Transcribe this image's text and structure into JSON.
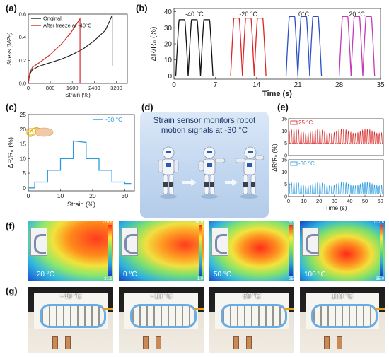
{
  "panels": {
    "a": "(a)",
    "b": "(b)",
    "c": "(c)",
    "d": "(d)",
    "e": "(e)",
    "f": "(f)",
    "g": "(g)"
  },
  "chart_data": [
    {
      "id": "a",
      "type": "line",
      "xlabel": "Strain (%)",
      "ylabel": "Stress (MPa)",
      "xlim": [
        0,
        3600
      ],
      "ylim": [
        0,
        0.6
      ],
      "xticks": [
        "0",
        "800",
        "1600",
        "2400",
        "3200"
      ],
      "yticks": [
        "0.0",
        "0.2",
        "0.4",
        "0.6"
      ],
      "legend_position": "top-left",
      "series": [
        {
          "name": "Original",
          "color": "#222222",
          "x": [
            0,
            50,
            150,
            400,
            800,
            1200,
            1600,
            2000,
            2400,
            2800,
            3050,
            3050
          ],
          "y": [
            0,
            0.08,
            0.12,
            0.15,
            0.18,
            0.21,
            0.25,
            0.3,
            0.37,
            0.46,
            0.59,
            0.15
          ]
        },
        {
          "name": "After freeze at -40°C",
          "color": "#d62b2b",
          "x": [
            0,
            50,
            150,
            400,
            800,
            1200,
            1550,
            1880,
            1880
          ],
          "y": [
            0,
            0.09,
            0.14,
            0.18,
            0.25,
            0.34,
            0.44,
            0.56,
            0.0
          ]
        }
      ]
    },
    {
      "id": "b",
      "type": "line",
      "xlabel": "Time (s)",
      "ylabel": "ΔR/R₀ (%)",
      "xlim": [
        0,
        35
      ],
      "ylim": [
        -2,
        42
      ],
      "xticks": [
        "0",
        "7",
        "14",
        "21",
        "28",
        "35"
      ],
      "yticks": [
        "0",
        "10",
        "20",
        "30",
        "40"
      ],
      "annotations": [
        "-40 °C",
        "-20 °C",
        "0°C",
        "20 °C"
      ],
      "series": [
        {
          "name": "-40 °C",
          "color": "#111111",
          "start": 0.3,
          "end": 6.6,
          "peak": 35
        },
        {
          "name": "-20 °C",
          "color": "#e02424",
          "start": 9.6,
          "end": 15.6,
          "peak": 36
        },
        {
          "name": "0°C",
          "color": "#2c4fc4",
          "start": 19.0,
          "end": 25.0,
          "peak": 37
        },
        {
          "name": "20 °C",
          "color": "#c43bb6",
          "start": 28.0,
          "end": 34.0,
          "peak": 37
        }
      ]
    },
    {
      "id": "c",
      "type": "line",
      "xlabel": "Strain (%)",
      "ylabel": "ΔR/R₀ (%)",
      "xlim": [
        0,
        33
      ],
      "ylim": [
        -1,
        25
      ],
      "xticks": [
        "0",
        "10",
        "20",
        "30"
      ],
      "yticks": [
        "0",
        "5",
        "10",
        "15",
        "20",
        "25"
      ],
      "legend_position": "top-right",
      "series": [
        {
          "name": "-30 °C",
          "color": "#2a9be0",
          "x": [
            0,
            2,
            2,
            6,
            6,
            10,
            10,
            14,
            14,
            18,
            18,
            22,
            22,
            26,
            26,
            30,
            30,
            32
          ],
          "y": [
            0,
            0,
            2,
            2,
            6,
            6,
            10,
            10,
            16,
            15.5,
            10,
            10,
            6,
            6,
            2,
            2,
            1.5,
            1.5
          ]
        }
      ]
    },
    {
      "id": "e",
      "type": "line",
      "xlabel": "Time (s)",
      "ylabel": "ΔR/R₀ (%)",
      "xlim": [
        0,
        62
      ],
      "xticks": [
        "0",
        "10",
        "20",
        "30",
        "40",
        "50",
        "60"
      ],
      "series": [
        {
          "name": "25 °C",
          "color": "#d8302f",
          "yticks": [
            "0",
            "5",
            "10",
            "15"
          ],
          "ylim": [
            0,
            15
          ]
        },
        {
          "name": "-30 °C",
          "color": "#2a9be0",
          "yticks": [
            "0",
            "5",
            "10",
            "15"
          ],
          "ylim": [
            0,
            15
          ]
        }
      ]
    }
  ],
  "d": {
    "caption_line1": "Strain sensor monitors robot",
    "caption_line2": "motion signals at -30 °C"
  },
  "f": {
    "panels": [
      {
        "temp": "−20 °C",
        "scale_top": "-19.8",
        "scale_bottom": "-21.8"
      },
      {
        "temp": "0 °C",
        "scale_top": "34.6",
        "scale_bottom": "-1.0"
      },
      {
        "temp": "50 °C",
        "scale_top": "50",
        "scale_bottom": "25"
      },
      {
        "temp": "100 °C",
        "scale_top": "102.6",
        "scale_bottom": "35.0"
      }
    ]
  },
  "g": {
    "panels": [
      {
        "temp": "−40 °C"
      },
      {
        "temp": "−10 °C"
      },
      {
        "temp": "50 °C"
      },
      {
        "temp": "100 °C"
      }
    ]
  },
  "colors": {
    "black": "#111111",
    "red": "#e02424",
    "blue": "#2c4fc4",
    "magenta": "#c43bb6",
    "cyan": "#2a9be0"
  }
}
